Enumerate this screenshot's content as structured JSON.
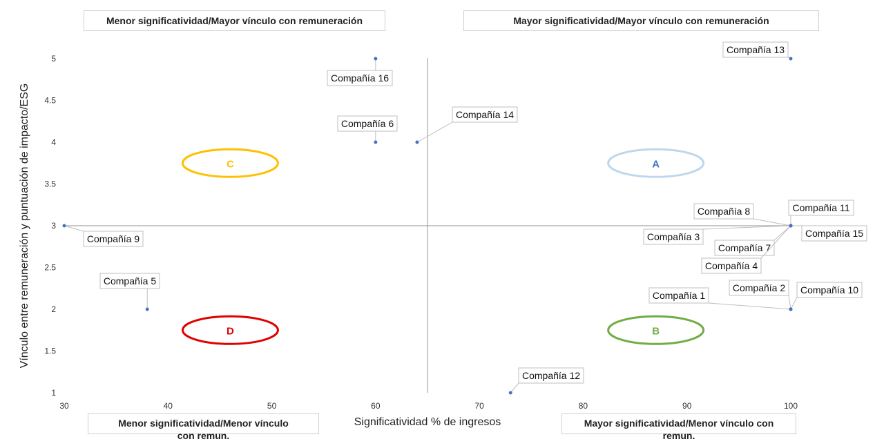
{
  "chart_data": {
    "type": "scatter",
    "xlabel": "Significatividad % de ingresos",
    "ylabel": "Vínculo entre remuneración y puntuación de impacto/ESG",
    "xlim": [
      30,
      100
    ],
    "ylim": [
      1,
      5
    ],
    "x_ticks": [
      "30",
      "40",
      "50",
      "60",
      "70",
      "80",
      "90",
      "100"
    ],
    "y_ticks": [
      "1",
      "1.5",
      "2",
      "2.5",
      "3",
      "3.5",
      "4",
      "4.5",
      "5"
    ],
    "divider": {
      "x": 65,
      "y": 3
    },
    "grid": false,
    "points": [
      {
        "label": "Compañía 16",
        "x": 60,
        "y": 5
      },
      {
        "label": "Compañía 6",
        "x": 60,
        "y": 4
      },
      {
        "label": "Compañía 14",
        "x": 64,
        "y": 4
      },
      {
        "label": "Compañía 13",
        "x": 100,
        "y": 5
      },
      {
        "label": "Compañía 9",
        "x": 30,
        "y": 3
      },
      {
        "label": "Compañía 5",
        "x": 38,
        "y": 2
      },
      {
        "label": "Compañía 12",
        "x": 73,
        "y": 1
      },
      {
        "label": "Compañía 8",
        "x": 100,
        "y": 3
      },
      {
        "label": "Compañía 11",
        "x": 100,
        "y": 3
      },
      {
        "label": "Compañía 3",
        "x": 100,
        "y": 3
      },
      {
        "label": "Compañía 15",
        "x": 100,
        "y": 3
      },
      {
        "label": "Compañía 7",
        "x": 100,
        "y": 3
      },
      {
        "label": "Compañía 4",
        "x": 100,
        "y": 3
      },
      {
        "label": "Compañía 1",
        "x": 100,
        "y": 2
      },
      {
        "label": "Compañía 2",
        "x": 100,
        "y": 2
      },
      {
        "label": "Compañía 10",
        "x": 100,
        "y": 2
      }
    ],
    "zones": [
      {
        "label": "A",
        "color": "#4472c4",
        "outline": "#bdd7ee"
      },
      {
        "label": "B",
        "color": "#70ad47",
        "outline": "#70ad47"
      },
      {
        "label": "C",
        "color": "#ffc000",
        "outline": "#ffc000"
      },
      {
        "label": "D",
        "color": "#e00000",
        "outline": "#e00000"
      }
    ],
    "quadrant_titles": {
      "top_left": "Menor significatividad/Mayor vínculo con remuneración",
      "top_right": "Mayor significatividad/Mayor vínculo con remuneración",
      "bottom_left": "Menor significatividad/Menor vínculo con remun.",
      "bottom_right": "Mayor significatividad/Menor vínculo con remun."
    },
    "marker_color": "#4472c4"
  }
}
